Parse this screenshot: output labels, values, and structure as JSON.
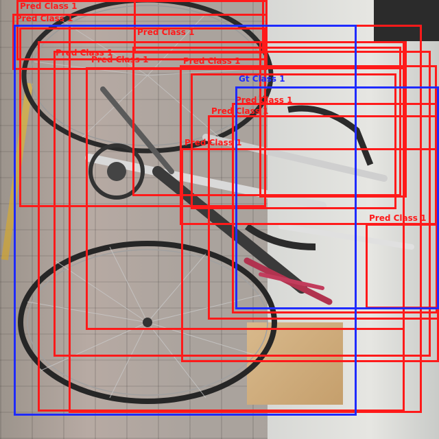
{
  "image": {
    "description_free": true,
    "colors": {
      "pred_box": "#ff1a1a",
      "gt_box": "#1f2bff"
    }
  },
  "detections": [
    {
      "kind": "pred",
      "label": "Pred Class 1"
    },
    {
      "kind": "pred",
      "label": "Pred Class 1"
    },
    {
      "kind": "pred",
      "label": "Pred Class 1"
    },
    {
      "kind": "pred",
      "label": "Pred Class 1"
    },
    {
      "kind": "pred",
      "label": "Pred Class 1"
    },
    {
      "kind": "pred",
      "label": "Pred Class 1"
    },
    {
      "kind": "pred",
      "label": "Pred Class 1"
    },
    {
      "kind": "pred",
      "label": "Pred Class 1"
    },
    {
      "kind": "pred",
      "label": "Pred Class 1"
    },
    {
      "kind": "pred",
      "label": "Pred Class 1"
    },
    {
      "kind": "pred",
      "label": "Pred Class 1"
    },
    {
      "kind": "pred",
      "label": "Pred Class 1"
    },
    {
      "kind": "gt",
      "label": "Gt Class 1"
    },
    {
      "kind": "gt",
      "label": ""
    }
  ]
}
